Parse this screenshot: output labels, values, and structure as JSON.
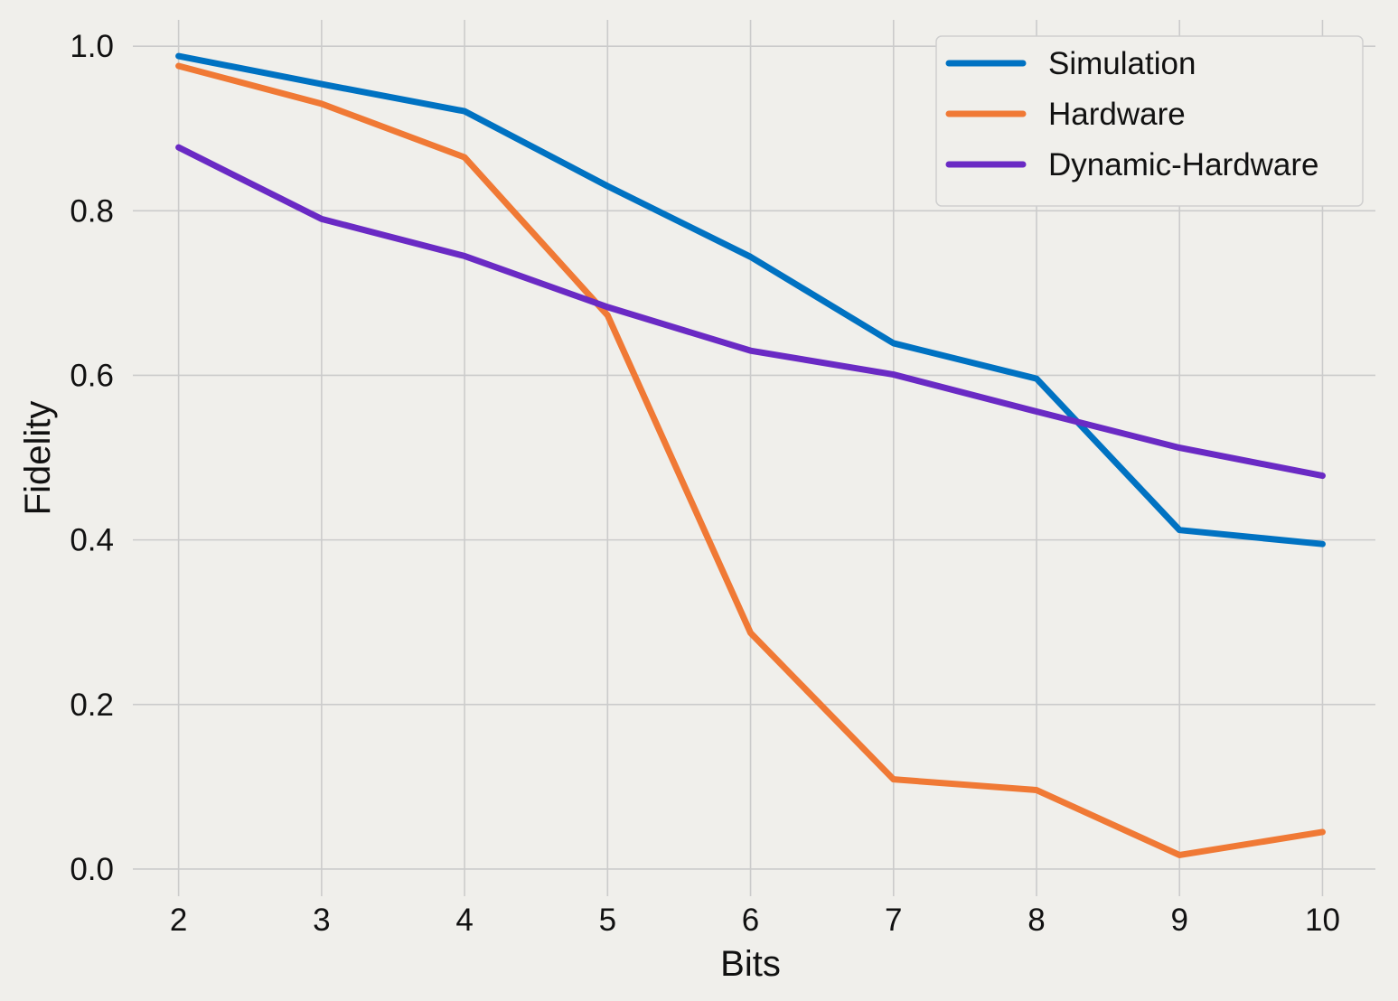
{
  "chart_data": {
    "type": "line",
    "xlabel": "Bits",
    "ylabel": "Fidelity",
    "x": [
      2,
      3,
      4,
      5,
      6,
      7,
      8,
      9,
      10
    ],
    "xlim": [
      1.68,
      10.37
    ],
    "ylim": [
      -0.033,
      1.032
    ],
    "x_ticks": [
      2,
      3,
      4,
      5,
      6,
      7,
      8,
      9,
      10
    ],
    "y_ticks": [
      0.0,
      0.2,
      0.4,
      0.6,
      0.8,
      1.0
    ],
    "y_tick_labels": [
      "0.0",
      "0.2",
      "0.4",
      "0.6",
      "0.8",
      "1.0"
    ],
    "grid": true,
    "legend_position": "top-right",
    "series": [
      {
        "name": "Simulation",
        "color": "#0072c2",
        "values": [
          0.988,
          0.954,
          0.921,
          0.83,
          0.744,
          0.639,
          0.596,
          0.412,
          0.395
        ]
      },
      {
        "name": "Hardware",
        "color": "#f07935",
        "values": [
          0.976,
          0.93,
          0.865,
          0.673,
          0.287,
          0.109,
          0.096,
          0.017,
          0.045
        ]
      },
      {
        "name": "Dynamic-Hardware",
        "color": "#6a2ac4",
        "values": [
          0.877,
          0.79,
          0.745,
          0.683,
          0.63,
          0.601,
          0.556,
          0.512,
          0.478
        ]
      }
    ]
  }
}
